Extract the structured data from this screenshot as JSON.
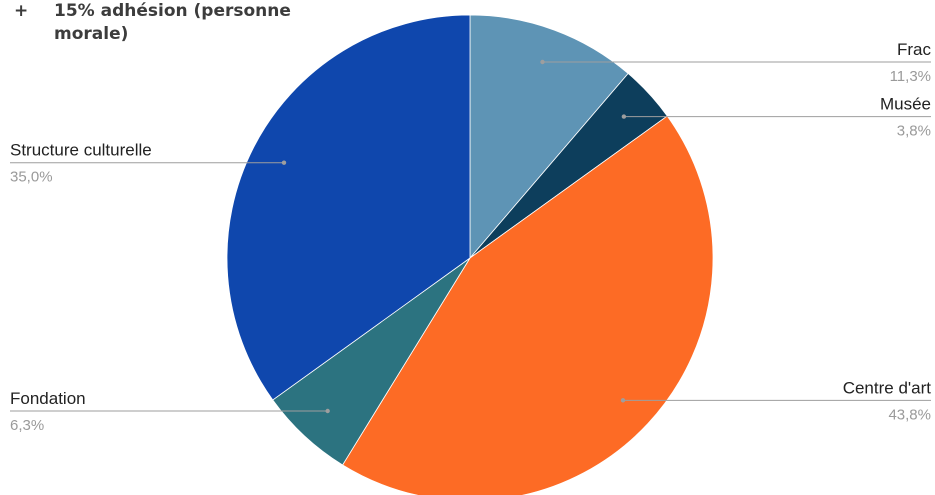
{
  "annotation": {
    "bullet": "+",
    "text": "15% adhésion (personne morale)"
  },
  "chart_data": {
    "type": "pie",
    "title": "",
    "start_angle_deg": 0,
    "direction": "clockwise",
    "slices": [
      {
        "label": "Frac",
        "value": 11.3,
        "display": "11,3%",
        "color": "#5e94b5",
        "label_side": "right"
      },
      {
        "label": "Musée",
        "value": 3.8,
        "display": "3,8%",
        "color": "#0d3e5c",
        "label_side": "right"
      },
      {
        "label": "Centre d'art",
        "value": 43.8,
        "display": "43,8%",
        "color": "#fd6b25",
        "label_side": "right"
      },
      {
        "label": "Fondation",
        "value": 6.3,
        "display": "6,3%",
        "color": "#2c7380",
        "label_side": "left"
      },
      {
        "label": "Structure culturelle",
        "value": 35.0,
        "display": "35,0%",
        "color": "#0f47ad",
        "label_side": "left"
      }
    ],
    "label_color": "#222222",
    "value_color": "#9a9a9a",
    "leader_color": "#9e9e9e"
  }
}
